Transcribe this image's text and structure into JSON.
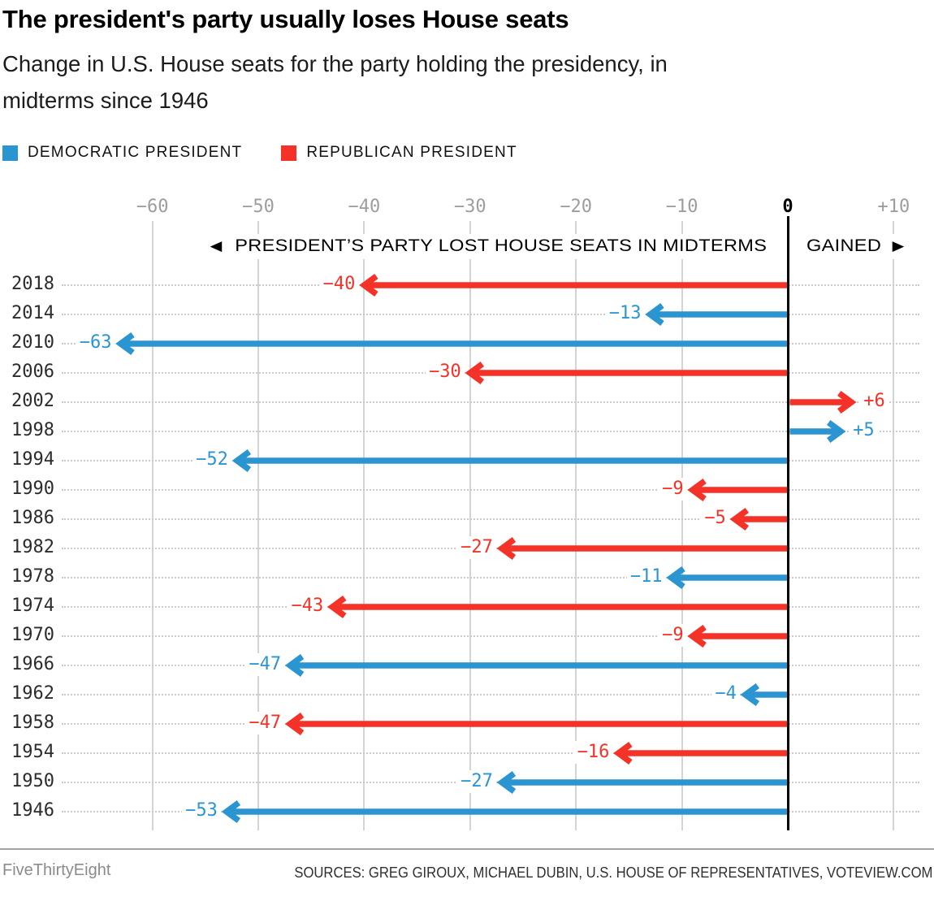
{
  "header": {
    "title": "The president's party usually loses House seats",
    "subtitle": "Change in U.S. House seats for the party holding the presidency, in\nmidterms since 1946"
  },
  "legend": [
    {
      "label": "DEMOCRATIC PRESIDENT",
      "color": "#2b95d2"
    },
    {
      "label": "REPUBLICAN PRESIDENT",
      "color": "#f43227"
    }
  ],
  "direction": {
    "lost": "PRESIDENT’S PARTY LOST HOUSE SEATS IN MIDTERMS",
    "gained": "GAINED",
    "left_arrow_icon": "◀",
    "right_arrow_icon": "▶"
  },
  "footer": {
    "brand": "FiveThirtyEight",
    "sources": "SOURCES: GREG GIROUX, MICHAEL DUBIN, U.S. HOUSE OF REPRESENTATIVES, VOTEVIEW.COM"
  },
  "chart_data": {
    "type": "bar",
    "title": "The president's party usually loses House seats",
    "orientation": "horizontal-arrows",
    "grid": "on",
    "legend_position": "top",
    "xticks": [
      -60,
      -50,
      -40,
      -30,
      -20,
      -10,
      0,
      10
    ],
    "xlim": [
      -68.5,
      12.4
    ],
    "colors": {
      "DEMOCRATIC": "#2b95d2",
      "REPUBLICAN": "#f43227"
    },
    "rows": [
      {
        "year": "2018",
        "party": "REPUBLICAN",
        "value": -40
      },
      {
        "year": "2014",
        "party": "DEMOCRATIC",
        "value": -13
      },
      {
        "year": "2010",
        "party": "DEMOCRATIC",
        "value": -63
      },
      {
        "year": "2006",
        "party": "REPUBLICAN",
        "value": -30
      },
      {
        "year": "2002",
        "party": "REPUBLICAN",
        "value": 6
      },
      {
        "year": "1998",
        "party": "DEMOCRATIC",
        "value": 5
      },
      {
        "year": "1994",
        "party": "DEMOCRATIC",
        "value": -52
      },
      {
        "year": "1990",
        "party": "REPUBLICAN",
        "value": -9
      },
      {
        "year": "1986",
        "party": "REPUBLICAN",
        "value": -5
      },
      {
        "year": "1982",
        "party": "REPUBLICAN",
        "value": -27
      },
      {
        "year": "1978",
        "party": "DEMOCRATIC",
        "value": -11
      },
      {
        "year": "1974",
        "party": "REPUBLICAN",
        "value": -43
      },
      {
        "year": "1970",
        "party": "REPUBLICAN",
        "value": -9
      },
      {
        "year": "1966",
        "party": "DEMOCRATIC",
        "value": -47
      },
      {
        "year": "1962",
        "party": "DEMOCRATIC",
        "value": -4
      },
      {
        "year": "1958",
        "party": "REPUBLICAN",
        "value": -47
      },
      {
        "year": "1954",
        "party": "REPUBLICAN",
        "value": -16
      },
      {
        "year": "1950",
        "party": "DEMOCRATIC",
        "value": -27
      },
      {
        "year": "1946",
        "party": "DEMOCRATIC",
        "value": -53
      }
    ]
  }
}
